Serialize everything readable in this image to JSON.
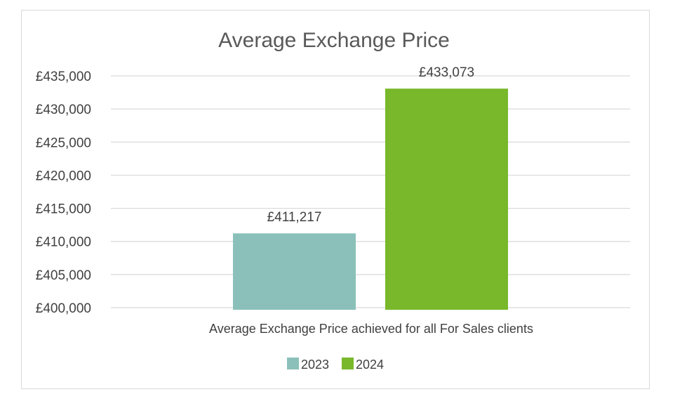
{
  "chart_data": {
    "type": "bar",
    "title": "Average Exchange Price",
    "categories": [
      "Average Exchange Price achieved for all For Sales clients"
    ],
    "series": [
      {
        "name": "2023",
        "values": [
          411217
        ],
        "label": "£411,217",
        "color": "#8bc0ba"
      },
      {
        "name": "2024",
        "values": [
          433073
        ],
        "label": "£433,073",
        "color": "#78b82a"
      }
    ],
    "ylim": [
      400000,
      435000
    ],
    "yticks": [
      {
        "value": 435000,
        "label": "£435,000"
      },
      {
        "value": 430000,
        "label": "£430,000"
      },
      {
        "value": 425000,
        "label": "£425,000"
      },
      {
        "value": 420000,
        "label": "£420,000"
      },
      {
        "value": 415000,
        "label": "£415,000"
      },
      {
        "value": 410000,
        "label": "£410,000"
      },
      {
        "value": 405000,
        "label": "£405,000"
      },
      {
        "value": 400000,
        "label": "£400,000"
      }
    ],
    "grid": true,
    "legend_position": "bottom",
    "gridline_color": "#d9d9d9"
  }
}
